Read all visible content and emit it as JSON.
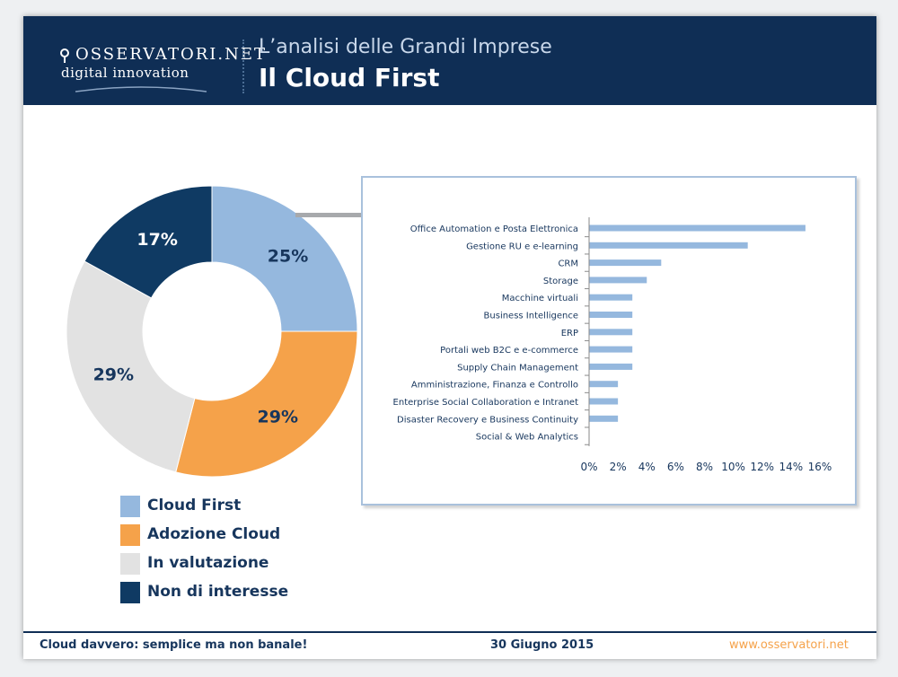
{
  "header": {
    "brand_name": "OSSERVATORI.NET",
    "brand_sub": "digital innovation",
    "subtitle": "L’analisi delle Grandi Imprese",
    "title": "Il Cloud First"
  },
  "colors": {
    "header_bg": "#0f2e55",
    "cloud_first": "#95b8de",
    "adozione_cloud": "#f5a24a",
    "in_valutazione": "#e2e2e2",
    "non_di_interesse": "#0f3a63",
    "bar": "#95b8de",
    "accent_orange": "#f5a24a"
  },
  "chart_data": [
    {
      "type": "pie",
      "title": "",
      "donut": true,
      "categories": [
        "Cloud First",
        "Adozione Cloud",
        "In valutazione",
        "Non di interesse"
      ],
      "values": [
        25,
        29,
        29,
        17
      ],
      "labels": [
        "25%",
        "29%",
        "29%",
        "17%"
      ],
      "legend_position": "bottom-left"
    },
    {
      "type": "bar",
      "orientation": "horizontal",
      "title": "",
      "categories": [
        "Office Automation e Posta Elettronica",
        "Gestione RU e e-learning",
        "CRM",
        "Storage",
        "Macchine virtuali",
        "Business Intelligence",
        "ERP",
        "Portali web B2C e e-commerce",
        "Supply Chain Management",
        "Amministrazione, Finanza e Controllo",
        "Enterprise Social Collaboration e Intranet",
        "Disaster Recovery e Business Continuity",
        "Social & Web Analytics"
      ],
      "values": [
        15,
        11,
        5,
        4,
        3,
        3,
        3,
        3,
        3,
        2,
        2,
        2,
        0
      ],
      "xlim": [
        0,
        16
      ],
      "xticks": [
        "0%",
        "2%",
        "4%",
        "6%",
        "8%",
        "10%",
        "12%",
        "14%",
        "16%"
      ],
      "grid": false
    }
  ],
  "footer": {
    "left": "Cloud davvero: semplice ma non banale!",
    "center": "30 Giugno 2015",
    "right": "www.osservatori.net"
  }
}
